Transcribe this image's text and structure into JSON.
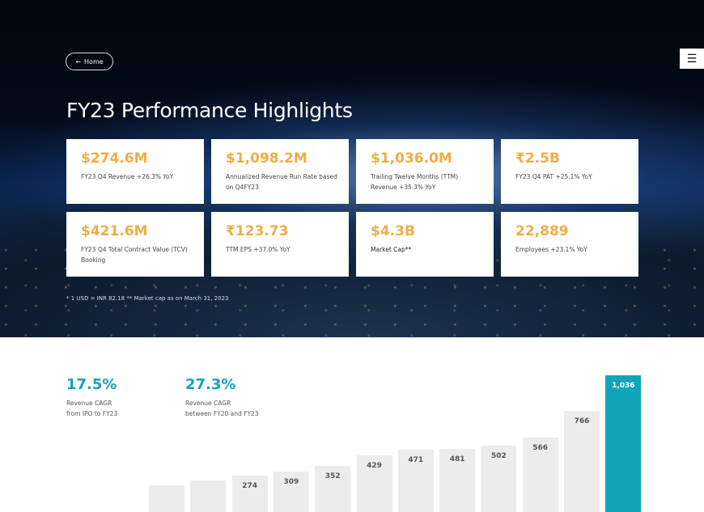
{
  "nav": {
    "home_label": "Home",
    "back_icon": "arrow-left-icon",
    "menu_icon": "hamburger-menu-icon"
  },
  "page_title": "FY23 Performance Highlights",
  "colors": {
    "metric_value": "#f0ad45",
    "cagr_value": "#13a3b8",
    "highlight_bar": "#12a4b9",
    "bar": "#ececec"
  },
  "metrics": [
    {
      "value": "$274.6M",
      "label": "FY23 Q4 Revenue +26.3% YoY"
    },
    {
      "value": "$1,098.2M",
      "label": "Annualized Revenue Run Rate based on Q4FY23"
    },
    {
      "value": "$1,036.0M",
      "label": "Trailing Twelve Months (TTM) Revenue +35.3% YoY"
    },
    {
      "value": "₹2.5B",
      "label": "FY23 Q4 PAT +25.1% YoY"
    },
    {
      "value": "$421.6M",
      "label": "FY23 Q4 Total Contract Value (TCV) Booking"
    },
    {
      "value": "₹123.73",
      "label": "TTM EPS +37.0% YoY"
    },
    {
      "value": "$4.3B",
      "label": "Market Cap**"
    },
    {
      "value": "22,889",
      "label": "Employees +23.1% YoY"
    }
  ],
  "footnote": "* 1 USD = INR 82.18  ** Market cap as on March 31, 2023",
  "cagr": [
    {
      "value": "17.5%",
      "line1": "Revenue CAGR",
      "line2": "from IPO to FY23"
    },
    {
      "value": "27.3%",
      "line1": "Revenue CAGR",
      "line2": "between FY20 and FY23"
    }
  ],
  "chart_data": {
    "type": "bar",
    "values": [
      202,
      238,
      274,
      309,
      352,
      429,
      471,
      481,
      502,
      566,
      766,
      1036
    ],
    "labels": [
      "",
      "",
      "274",
      "309",
      "352",
      "429",
      "471",
      "481",
      "502",
      "566",
      "766",
      "1,036"
    ],
    "highlight_index": 11
  }
}
